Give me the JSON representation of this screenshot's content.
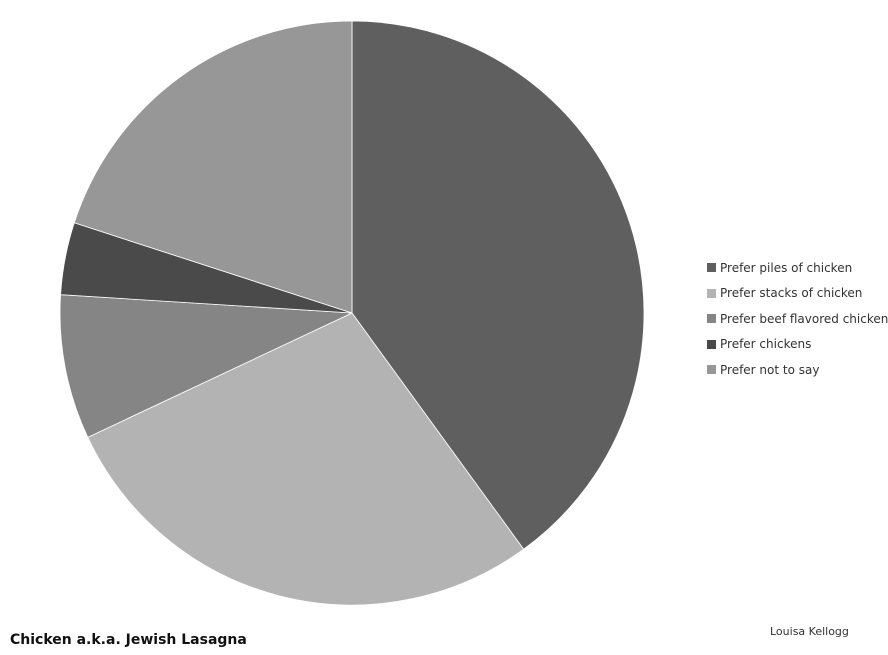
{
  "chart_data": {
    "type": "pie",
    "title": "Chicken a.k.a. Jewish Lasagna",
    "credit": "Louisa Kellogg",
    "legend_position": "right",
    "slices": [
      {
        "label": "Prefer piles of chicken",
        "value": 40,
        "color": "#5f5f5f"
      },
      {
        "label": "Prefer stacks of chicken",
        "value": 28,
        "color": "#b3b3b3"
      },
      {
        "label": "Prefer beef flavored chicken",
        "value": 8,
        "color": "#858585"
      },
      {
        "label": "Prefer chickens",
        "value": 4,
        "color": "#4a4a4a"
      },
      {
        "label": "Prefer not to say",
        "value": 20,
        "color": "#979797"
      }
    ]
  }
}
